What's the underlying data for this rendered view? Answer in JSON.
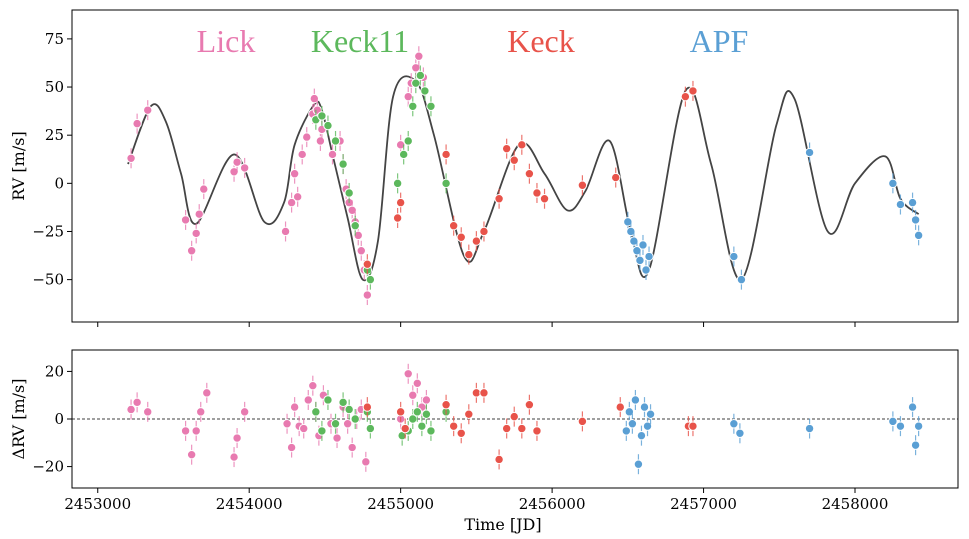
{
  "chart_data": {
    "type": "scatter",
    "xlabel": "Time [JD]",
    "x_ticks": [
      2453000,
      2454000,
      2455000,
      2456000,
      2457000,
      2458000
    ],
    "x_tick_labels": [
      "2453000",
      "2454000",
      "2455000",
      "2456000",
      "2457000",
      "2458000"
    ],
    "xlim": [
      2452830,
      2458680
    ],
    "instruments": [
      {
        "name": "Lick",
        "color": "#e87ab0"
      },
      {
        "name": "Keck11",
        "color": "#5cb85c"
      },
      {
        "name": "Keck",
        "color": "#e8534a"
      },
      {
        "name": "APF",
        "color": "#5a9fd4"
      }
    ],
    "panels": [
      {
        "name": "rv",
        "ylabel": "RV [m/s]",
        "ylim": [
          -72,
          90
        ],
        "y_ticks": [
          -50,
          -25,
          0,
          25,
          50,
          75
        ],
        "y_tick_labels": [
          "−50",
          "−25",
          "0",
          "25",
          "50",
          "75"
        ],
        "model": {
          "color": "#444444",
          "x": [
            2453200,
            2453350,
            2453450,
            2453550,
            2453650,
            2453900,
            2454100,
            2454230,
            2454300,
            2454430,
            2454480,
            2454550,
            2454650,
            2454750,
            2454850,
            2454950,
            2455100,
            2455220,
            2455420,
            2455550,
            2455780,
            2455950,
            2456100,
            2456220,
            2456380,
            2456520,
            2456640,
            2456880,
            2457050,
            2457250,
            2457480,
            2457600,
            2457820,
            2458000,
            2458200,
            2458300,
            2458420
          ],
          "y": [
            10,
            40,
            32,
            5,
            -21,
            15,
            -20,
            -10,
            20,
            41,
            38,
            15,
            -18,
            -50,
            -30,
            45,
            53,
            25,
            -38,
            -25,
            20,
            5,
            -14,
            -4,
            22,
            -25,
            -45,
            48,
            10,
            -50,
            30,
            44,
            -25,
            0,
            14,
            -8,
            -16
          ]
        },
        "series": [
          {
            "instrument": "Lick",
            "x": [
              2453220,
              2453260,
              2453330,
              2453580,
              2453620,
              2453650,
              2453670,
              2453700,
              2453900,
              2453920,
              2453970,
              2454240,
              2454280,
              2454300,
              2454320,
              2454350,
              2454380,
              2454420,
              2454430,
              2454450,
              2454470,
              2454480,
              2454550,
              2454600,
              2454620,
              2454640,
              2454660,
              2454680,
              2454700,
              2454720,
              2454740,
              2454760,
              2454780,
              2455000,
              2455050,
              2455070,
              2455100,
              2455120,
              2455150
            ],
            "y": [
              13,
              31,
              38,
              -19,
              -35,
              -26,
              -16,
              -3,
              6,
              11,
              8,
              -25,
              -10,
              5,
              -7,
              15,
              24,
              36,
              44,
              38,
              22,
              28,
              15,
              22,
              10,
              -3,
              -10,
              -14,
              -20,
              -27,
              -35,
              -45,
              -58,
              20,
              45,
              52,
              60,
              66,
              55
            ]
          },
          {
            "instrument": "Keck11",
            "x": [
              2454440,
              2454480,
              2454520,
              2454570,
              2454620,
              2454660,
              2454700,
              2454780,
              2454800,
              2454980,
              2455020,
              2455050,
              2455080,
              2455100,
              2455130,
              2455160,
              2455200,
              2455300
            ],
            "y": [
              33,
              35,
              30,
              22,
              10,
              -5,
              -22,
              -45,
              -50,
              0,
              15,
              22,
              40,
              52,
              56,
              48,
              40,
              0
            ]
          },
          {
            "instrument": "Keck",
            "x": [
              2454780,
              2454980,
              2455000,
              2455300,
              2455350,
              2455400,
              2455450,
              2455500,
              2455550,
              2455650,
              2455700,
              2455750,
              2455800,
              2455850,
              2455900,
              2455950,
              2456200,
              2456420,
              2456880,
              2456930
            ],
            "y": [
              -42,
              -18,
              -10,
              15,
              -22,
              -28,
              -37,
              -30,
              -25,
              -8,
              18,
              12,
              20,
              5,
              -5,
              -8,
              -1,
              3,
              45,
              48
            ]
          },
          {
            "instrument": "APF",
            "x": [
              2456500,
              2456520,
              2456540,
              2456560,
              2456580,
              2456600,
              2456620,
              2456640,
              2457200,
              2457250,
              2457700,
              2458250,
              2458300,
              2458380,
              2458400,
              2458420
            ],
            "y": [
              -20,
              -25,
              -30,
              -35,
              -40,
              -32,
              -45,
              -38,
              -38,
              -50,
              16,
              0,
              -11,
              -10,
              -19,
              -27
            ]
          }
        ]
      },
      {
        "name": "residuals",
        "ylabel": "ΔRV [m/s]",
        "ylim": [
          -29,
          29
        ],
        "y_ticks": [
          -20,
          0,
          20
        ],
        "y_tick_labels": [
          "−20",
          "0",
          "20"
        ],
        "zero_line": true,
        "series": [
          {
            "instrument": "Lick",
            "x": [
              2453220,
              2453260,
              2453330,
              2453580,
              2453620,
              2453650,
              2453680,
              2453720,
              2453900,
              2453920,
              2453970,
              2454250,
              2454280,
              2454300,
              2454330,
              2454360,
              2454390,
              2454420,
              2454440,
              2454460,
              2454490,
              2454540,
              2454580,
              2454620,
              2454650,
              2454680,
              2454710,
              2454740,
              2454770,
              2455000,
              2455050,
              2455080,
              2455110,
              2455140,
              2455170
            ],
            "y": [
              4,
              7,
              3,
              -5,
              -15,
              -5,
              3,
              11,
              -16,
              -8,
              3,
              -2,
              -12,
              5,
              -3,
              -4,
              8,
              14,
              3,
              -7,
              10,
              -2,
              -8,
              5,
              -2,
              -12,
              0,
              4,
              -18,
              0,
              19,
              10,
              15,
              5,
              8
            ]
          },
          {
            "instrument": "Keck11",
            "x": [
              2454440,
              2454480,
              2454520,
              2454570,
              2454620,
              2454660,
              2454700,
              2454780,
              2454800,
              2455010,
              2455050,
              2455080,
              2455110,
              2455140,
              2455170,
              2455200,
              2455300
            ],
            "y": [
              3,
              -5,
              8,
              -2,
              7,
              4,
              0,
              3,
              -4,
              -7,
              -5,
              0,
              3,
              -3,
              2,
              -5,
              3
            ]
          },
          {
            "instrument": "Keck",
            "x": [
              2454780,
              2455000,
              2455030,
              2455300,
              2455350,
              2455400,
              2455450,
              2455500,
              2455550,
              2455650,
              2455700,
              2455750,
              2455800,
              2455850,
              2455900,
              2456200,
              2456450,
              2456900,
              2456930
            ],
            "y": [
              5,
              3,
              -4,
              6,
              -3,
              -6,
              2,
              11,
              11,
              -17,
              -4,
              1,
              -4,
              6,
              -5,
              -1,
              5,
              -3,
              -3
            ]
          },
          {
            "instrument": "APF",
            "x": [
              2456490,
              2456510,
              2456530,
              2456550,
              2456570,
              2456590,
              2456610,
              2456630,
              2456650,
              2457200,
              2457240,
              2457700,
              2458250,
              2458300,
              2458380,
              2458400,
              2458420
            ],
            "y": [
              -5,
              3,
              -2,
              8,
              -19,
              -7,
              5,
              -3,
              2,
              -2,
              -6,
              -4,
              -1,
              -3,
              5,
              -11,
              -3
            ]
          }
        ]
      }
    ]
  }
}
